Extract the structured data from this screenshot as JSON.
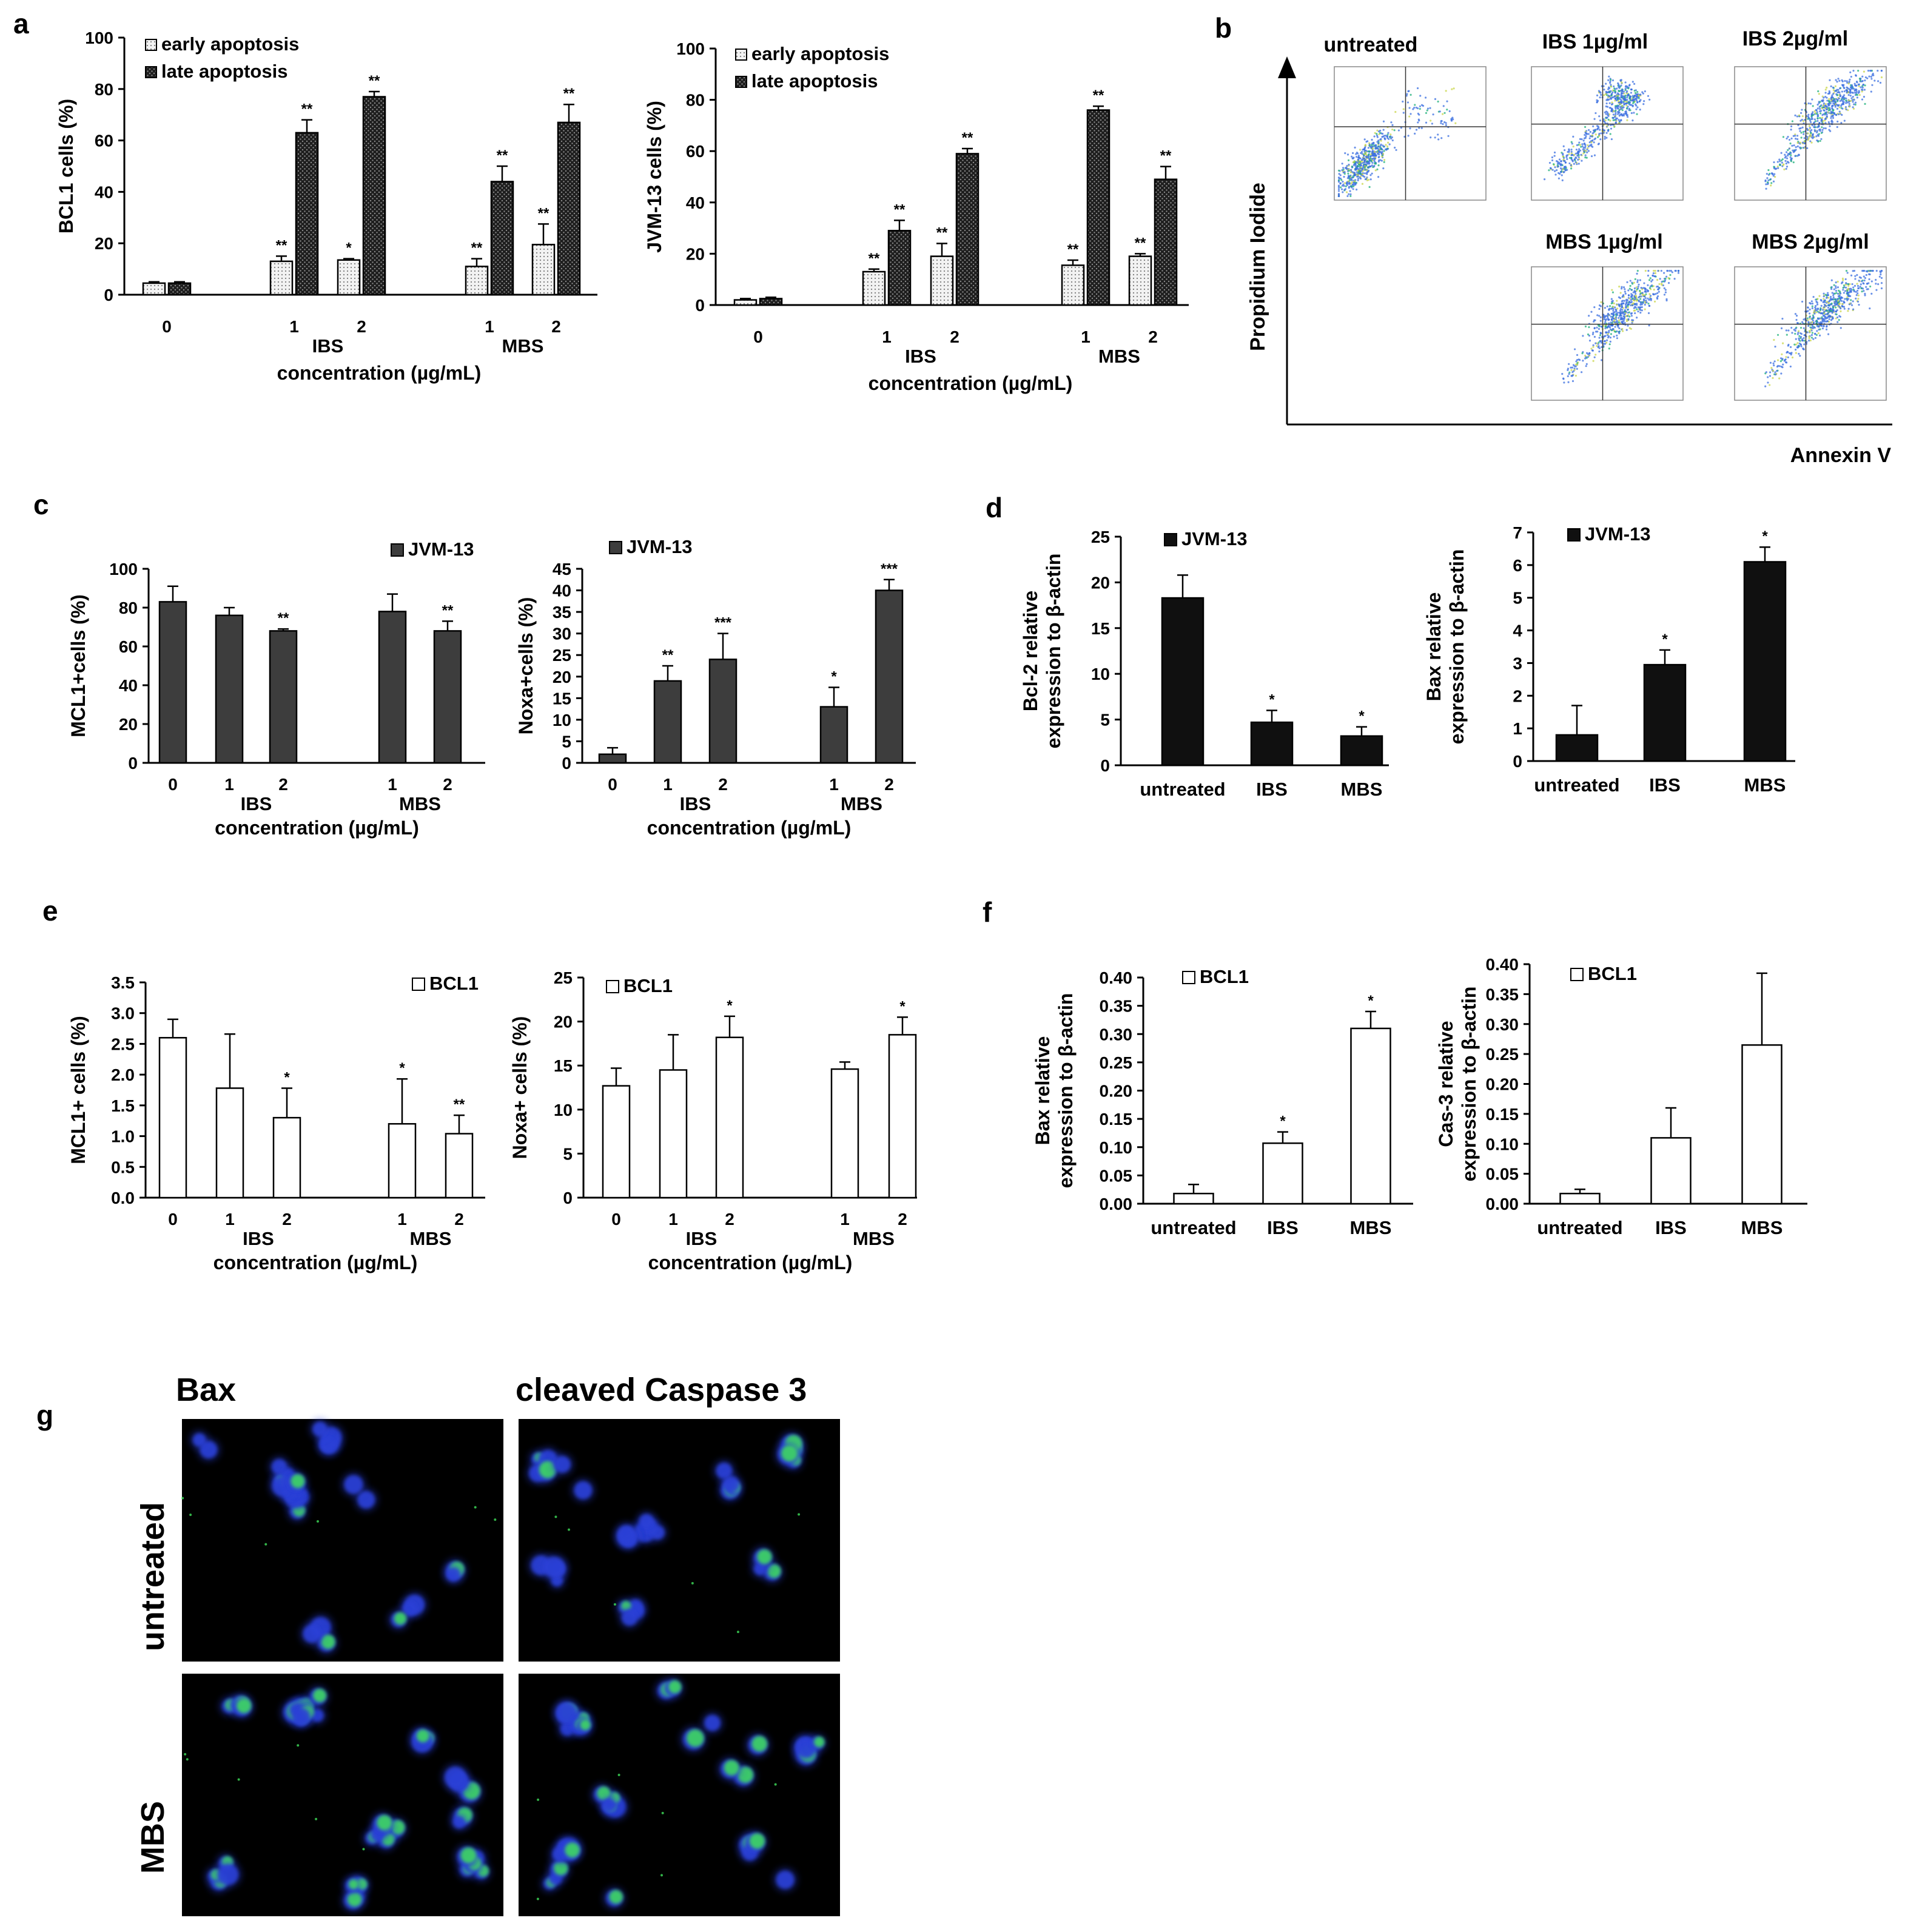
{
  "colors": {
    "dark_bar": "#3d3d3d",
    "black_bar": "#101010",
    "white_bar": "#ffffff",
    "dot_fill": "#e7e7e7",
    "hatch_fill": "#2a2a2a",
    "micro_bg": "#000000",
    "nucleus_blue": "#2b3fd6",
    "stain_green": "#3fe05a"
  },
  "chart_data": [
    {
      "id": "a1",
      "panel": "a",
      "type": "bar",
      "ylabel": "BCL1 cells (%)",
      "xlabel": "concentration (µg/mL)",
      "ylim": [
        0,
        100
      ],
      "yticks": [
        "0",
        "20",
        "40",
        "60",
        "80",
        "100"
      ],
      "categories": [
        "0",
        "1",
        "2",
        "1",
        "2"
      ],
      "groups": [
        {
          "label": "IBS",
          "members": [
            1,
            2
          ]
        },
        {
          "label": "MBS",
          "members": [
            3,
            4
          ]
        }
      ],
      "legend": [
        "early apoptosis",
        "late apoptosis"
      ],
      "series": [
        {
          "name": "early apoptosis",
          "values": [
            4.5,
            13,
            13.5,
            11,
            19.5
          ],
          "errors": [
            0.5,
            2,
            0.5,
            3,
            8
          ],
          "stars": [
            "",
            "**",
            "*",
            "**",
            "**"
          ]
        },
        {
          "name": "late apoptosis",
          "values": [
            4.5,
            63,
            77,
            44,
            67
          ],
          "errors": [
            0.5,
            5,
            2,
            6,
            7
          ],
          "stars": [
            "",
            "**",
            "**",
            "**",
            "**"
          ]
        }
      ]
    },
    {
      "id": "a2",
      "panel": "",
      "type": "bar",
      "ylabel": "JVM-13 cells (%)",
      "xlabel": "concentration (µg/mL)",
      "ylim": [
        0,
        100
      ],
      "yticks": [
        "0",
        "20",
        "40",
        "60",
        "80",
        "100"
      ],
      "categories": [
        "0",
        "1",
        "2",
        "1",
        "2"
      ],
      "groups": [
        {
          "label": "IBS",
          "members": [
            1,
            2
          ]
        },
        {
          "label": "MBS",
          "members": [
            3,
            4
          ]
        }
      ],
      "legend": [
        "early apoptosis",
        "late apoptosis"
      ],
      "series": [
        {
          "name": "early apoptosis",
          "values": [
            2,
            13,
            19,
            15.5,
            19
          ],
          "errors": [
            0.5,
            1,
            5,
            2,
            1
          ],
          "stars": [
            "",
            "**",
            "**",
            "**",
            "**"
          ]
        },
        {
          "name": "late apoptosis",
          "values": [
            2.5,
            29,
            59,
            76,
            49
          ],
          "errors": [
            0.5,
            4,
            2,
            1.5,
            5
          ],
          "stars": [
            "",
            "**",
            "**",
            "**",
            "**"
          ]
        }
      ]
    },
    {
      "id": "c1",
      "panel": "c",
      "type": "bar",
      "ylabel": "MCL1+cells (%)",
      "xlabel": "concentration (µg/mL)",
      "ylim": [
        0,
        100
      ],
      "yticks": [
        "0",
        "20",
        "40",
        "60",
        "80",
        "100"
      ],
      "categories": [
        "0",
        "1",
        "2",
        "1",
        "2"
      ],
      "groups": [
        {
          "label": "IBS",
          "members": [
            1,
            2
          ]
        },
        {
          "label": "MBS",
          "members": [
            3,
            4
          ]
        }
      ],
      "legend": [
        "JVM-13"
      ],
      "series": [
        {
          "name": "JVM-13",
          "values": [
            83,
            76,
            68,
            78,
            68
          ],
          "errors": [
            8,
            4,
            1,
            9,
            5
          ],
          "stars": [
            "",
            "",
            "**",
            "",
            "**"
          ]
        }
      ]
    },
    {
      "id": "c2",
      "panel": "",
      "type": "bar",
      "ylabel": "Noxa+cells (%)",
      "xlabel": "concentration (µg/mL)",
      "ylim": [
        0,
        45
      ],
      "yticks": [
        "0",
        "5",
        "10",
        "15",
        "20",
        "25",
        "30",
        "35",
        "40",
        "45"
      ],
      "categories": [
        "0",
        "1",
        "2",
        "1",
        "2"
      ],
      "groups": [
        {
          "label": "IBS",
          "members": [
            1,
            2
          ]
        },
        {
          "label": "MBS",
          "members": [
            3,
            4
          ]
        }
      ],
      "legend": [
        "JVM-13"
      ],
      "series": [
        {
          "name": "JVM-13",
          "values": [
            2,
            19,
            24,
            13,
            40
          ],
          "errors": [
            1.5,
            3.5,
            6,
            4.5,
            2.5
          ],
          "stars": [
            "",
            "**",
            "***",
            "*",
            "***"
          ]
        }
      ]
    },
    {
      "id": "d1",
      "panel": "d",
      "type": "bar",
      "ylabel": "Bcl-2 relative expression to β-actin",
      "xlabel": "",
      "ylim": [
        0,
        25
      ],
      "yticks": [
        "0",
        "5",
        "10",
        "15",
        "20",
        "25"
      ],
      "categories": [
        "untreated",
        "IBS",
        "MBS"
      ],
      "legend": [
        "JVM-13"
      ],
      "series": [
        {
          "name": "JVM-13",
          "values": [
            18.3,
            4.7,
            3.2
          ],
          "errors": [
            2.5,
            1.3,
            1
          ],
          "stars": [
            "",
            "*",
            "*"
          ]
        }
      ]
    },
    {
      "id": "d2",
      "panel": "",
      "type": "bar",
      "ylabel": "Bax relative expression to β-actin",
      "xlabel": "",
      "ylim": [
        0,
        7
      ],
      "yticks": [
        "0",
        "1",
        "2",
        "3",
        "4",
        "5",
        "6",
        "7"
      ],
      "categories": [
        "untreated",
        "IBS",
        "MBS"
      ],
      "legend": [
        "JVM-13"
      ],
      "series": [
        {
          "name": "JVM-13",
          "values": [
            0.8,
            2.95,
            6.1
          ],
          "errors": [
            0.9,
            0.45,
            0.45
          ],
          "stars": [
            "",
            "*",
            "*"
          ]
        }
      ]
    },
    {
      "id": "e1",
      "panel": "e",
      "type": "bar",
      "ylabel": "MCL1+ cells (%)",
      "xlabel": "concentration (µg/mL)",
      "ylim": [
        0,
        3.5
      ],
      "yticks": [
        "0.0",
        "0.5",
        "1.0",
        "1.5",
        "2.0",
        "2.5",
        "3.0",
        "3.5"
      ],
      "categories": [
        "0",
        "1",
        "2",
        "1",
        "2"
      ],
      "groups": [
        {
          "label": "IBS",
          "members": [
            1,
            2
          ]
        },
        {
          "label": "MBS",
          "members": [
            3,
            4
          ]
        }
      ],
      "legend": [
        "BCL1"
      ],
      "series": [
        {
          "name": "BCL1",
          "values": [
            2.6,
            1.78,
            1.3,
            1.2,
            1.04
          ],
          "errors": [
            0.3,
            0.88,
            0.48,
            0.73,
            0.3
          ],
          "stars": [
            "",
            "",
            "*",
            "*",
            "**"
          ]
        }
      ]
    },
    {
      "id": "e2",
      "panel": "",
      "type": "bar",
      "ylabel": "Noxa+ cells (%)",
      "xlabel": "concentration (µg/mL)",
      "ylim": [
        0,
        25
      ],
      "yticks": [
        "0",
        "5",
        "10",
        "15",
        "20",
        "25"
      ],
      "categories": [
        "0",
        "1",
        "2",
        "1",
        "2"
      ],
      "groups": [
        {
          "label": "IBS",
          "members": [
            1,
            2
          ]
        },
        {
          "label": "MBS",
          "members": [
            3,
            4
          ]
        }
      ],
      "legend": [
        "BCL1"
      ],
      "series": [
        {
          "name": "BCL1",
          "values": [
            12.7,
            14.5,
            18.2,
            14.6,
            18.5
          ],
          "errors": [
            2,
            4,
            2.4,
            0.8,
            2
          ],
          "stars": [
            "",
            "",
            "*",
            "",
            "*"
          ]
        }
      ]
    },
    {
      "id": "f1",
      "panel": "f",
      "type": "bar",
      "ylabel": "Bax relative expression to β-actin",
      "xlabel": "",
      "ylim": [
        0,
        0.4
      ],
      "yticks": [
        "0.00",
        "0.05",
        "0.10",
        "0.15",
        "0.20",
        "0.25",
        "0.30",
        "0.35",
        "0.40"
      ],
      "categories": [
        "untreated",
        "IBS",
        "MBS"
      ],
      "legend": [
        "BCL1"
      ],
      "series": [
        {
          "name": "BCL1",
          "values": [
            0.018,
            0.107,
            0.31
          ],
          "errors": [
            0.016,
            0.02,
            0.03
          ],
          "stars": [
            "",
            "*",
            "*"
          ]
        }
      ]
    },
    {
      "id": "f2",
      "panel": "",
      "type": "bar",
      "ylabel": "Cas-3 relative expression to β-actin",
      "xlabel": "",
      "ylim": [
        0,
        0.4
      ],
      "yticks": [
        "0.00",
        "0.05",
        "0.10",
        "0.15",
        "0.20",
        "0.25",
        "0.30",
        "0.35",
        "0.40"
      ],
      "categories": [
        "untreated",
        "IBS",
        "MBS"
      ],
      "legend": [
        "BCL1"
      ],
      "series": [
        {
          "name": "BCL1",
          "values": [
            0.017,
            0.11,
            0.265
          ],
          "errors": [
            0.007,
            0.05,
            0.12
          ],
          "stars": [
            "",
            "",
            ""
          ]
        }
      ]
    }
  ],
  "flow_panel": {
    "letter": "b",
    "y_axis_label": "Propidium Iodide",
    "x_axis_label": "Annexin V",
    "plots": [
      {
        "title": "untreated",
        "cluster": "lower-left"
      },
      {
        "title": "IBS 1µg/ml",
        "cluster": "diagonal"
      },
      {
        "title": "IBS 2µg/ml",
        "cluster": "upper-right"
      },
      {
        "title": "MBS 1µg/ml",
        "cluster": "upper-right"
      },
      {
        "title": "MBS 2µg/ml",
        "cluster": "upper-right"
      }
    ]
  },
  "micrographs": {
    "letter": "g",
    "columns": [
      "Bax",
      "cleaved Caspase 3"
    ],
    "rows": [
      "untreated",
      "MBS"
    ]
  }
}
